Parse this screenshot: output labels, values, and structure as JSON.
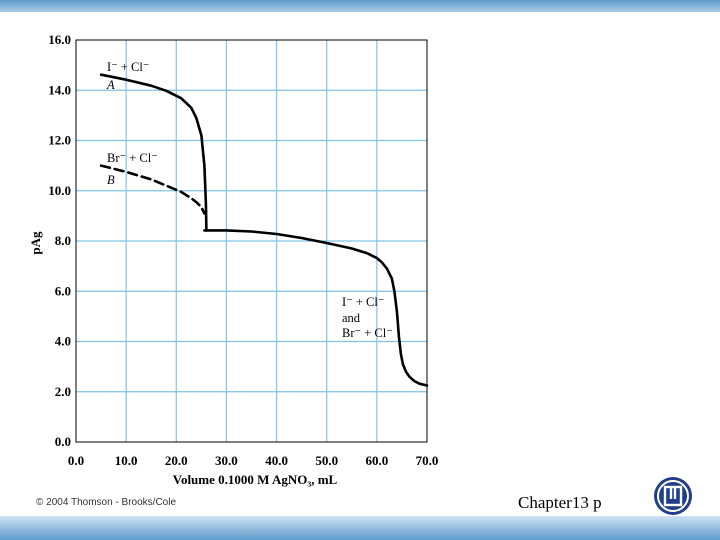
{
  "footer": {
    "credit": "© 2004 Thomson - Brooks/Cole",
    "slide_label": "Chapter13 p"
  },
  "colors": {
    "grid": "#7fc3ea",
    "curve": "#000000",
    "band": "#5f9bcc",
    "logo": "#1f3f8a"
  },
  "chart_data": {
    "type": "line",
    "title": "",
    "xlabel": "Volume 0.1000 M AgNO₃, mL",
    "ylabel": "pAg",
    "xlim": [
      0,
      70
    ],
    "ylim": [
      0,
      16
    ],
    "grid": true,
    "xticks": [
      "0.0",
      "10.0",
      "20.0",
      "30.0",
      "40.0",
      "50.0",
      "60.0",
      "70.0"
    ],
    "yticks": [
      "0.0",
      "2.0",
      "4.0",
      "6.0",
      "8.0",
      "10.0",
      "12.0",
      "14.0",
      "16.0"
    ],
    "series": [
      {
        "name": "A",
        "style": "solid",
        "x": [
          5,
          10,
          15,
          18,
          21,
          23,
          24,
          25,
          25.6,
          25.9,
          26
        ],
        "y": [
          14.62,
          14.42,
          14.18,
          13.98,
          13.68,
          13.3,
          12.9,
          12.2,
          11.0,
          9.5,
          8.42
        ]
      },
      {
        "name": "B",
        "style": "dashed",
        "x": [
          5,
          10,
          15,
          18,
          21,
          23,
          24,
          25,
          25.6
        ],
        "y": [
          11.0,
          10.75,
          10.45,
          10.2,
          9.95,
          9.7,
          9.55,
          9.35,
          9.1
        ]
      },
      {
        "name": "I⁻ + Cl⁻ and Br⁻ + Cl⁻",
        "style": "solid",
        "x": [
          25.6,
          26,
          27,
          30,
          35,
          40,
          45,
          50,
          55,
          58,
          60,
          61,
          62,
          63,
          63.5,
          64,
          64.4,
          64.8,
          65.2,
          65.8,
          66.5,
          67.5,
          68.5,
          70
        ],
        "y": [
          8.42,
          8.42,
          8.42,
          8.42,
          8.38,
          8.28,
          8.12,
          7.92,
          7.7,
          7.52,
          7.32,
          7.15,
          6.9,
          6.5,
          6.0,
          5.2,
          4.2,
          3.5,
          3.1,
          2.8,
          2.6,
          2.42,
          2.32,
          2.25
        ]
      }
    ],
    "annotations": [
      {
        "line1": "I⁻ + Cl⁻",
        "line2": "A"
      },
      {
        "line1": "Br⁻ + Cl⁻",
        "line2": "B"
      },
      {
        "line1": "I⁻ + Cl⁻",
        "line2": "and",
        "line3": "Br⁻ + Cl⁻"
      }
    ]
  }
}
